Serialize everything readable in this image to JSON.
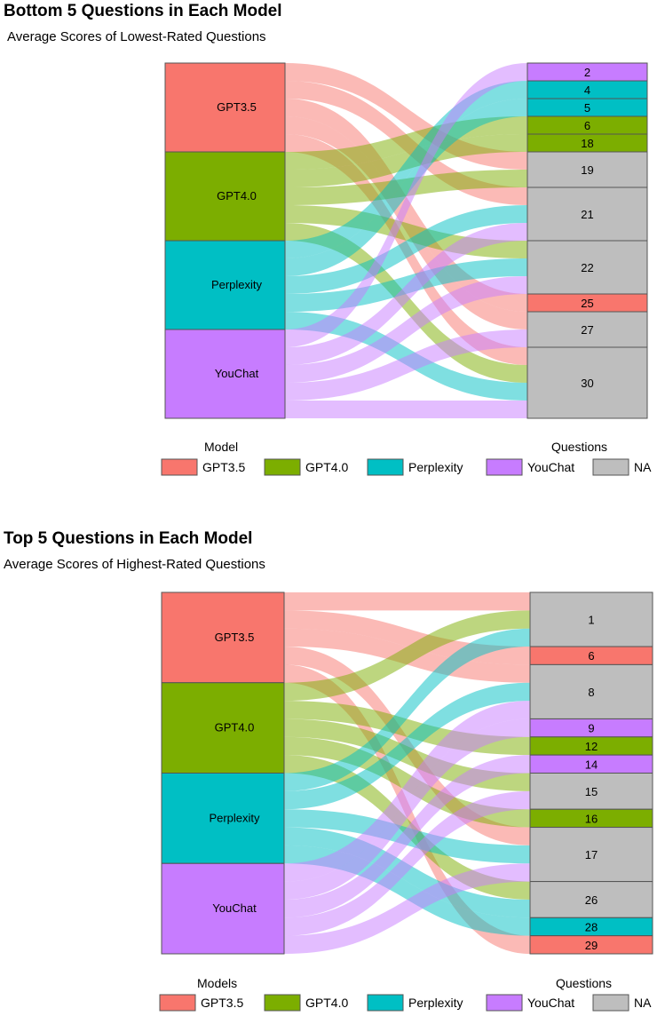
{
  "palette": {
    "GPT3.5": "#F8766D",
    "GPT4.0": "#7CAE00",
    "Perplexity": "#00BFC4",
    "YouChat": "#C77CFF",
    "NA": "#BEBEBE"
  },
  "chart_data": [
    {
      "type": "alluvial",
      "title": "Bottom 5 Questions in Each Model",
      "subtitle": "Average Scores of Lowest-Rated Questions",
      "left_axis_title": "Model",
      "right_axis_title": "Questions",
      "models": [
        "GPT3.5",
        "GPT4.0",
        "Perplexity",
        "YouChat"
      ],
      "questions": [
        {
          "label": "2",
          "owner": "YouChat"
        },
        {
          "label": "4",
          "owner": "Perplexity"
        },
        {
          "label": "5",
          "owner": "Perplexity"
        },
        {
          "label": "6",
          "owner": "GPT4.0"
        },
        {
          "label": "18",
          "owner": "GPT4.0"
        },
        {
          "label": "19",
          "owner": "NA"
        },
        {
          "label": "21",
          "owner": "NA"
        },
        {
          "label": "22",
          "owner": "NA"
        },
        {
          "label": "25",
          "owner": "GPT3.5"
        },
        {
          "label": "27",
          "owner": "NA"
        },
        {
          "label": "30",
          "owner": "NA"
        }
      ],
      "flows": {
        "GPT3.5": [
          "19",
          "21",
          "25",
          "27",
          "30"
        ],
        "GPT4.0": [
          "6",
          "18",
          "19",
          "22",
          "30"
        ],
        "Perplexity": [
          "4",
          "5",
          "21",
          "22",
          "30"
        ],
        "YouChat": [
          "2",
          "21",
          "22",
          "27",
          "30"
        ]
      },
      "legend": [
        {
          "key": "GPT3.5",
          "label": "GPT3.5"
        },
        {
          "key": "GPT4.0",
          "label": "GPT4.0"
        },
        {
          "key": "Perplexity",
          "label": "Perplexity"
        },
        {
          "key": "YouChat",
          "label": "YouChat"
        },
        {
          "key": "NA",
          "label": "NA"
        }
      ]
    },
    {
      "type": "alluvial",
      "title": "Top 5 Questions in Each Model",
      "subtitle": "Average Scores of Highest-Rated Questions",
      "left_axis_title": "Models",
      "right_axis_title": "Questions",
      "models": [
        "GPT3.5",
        "GPT4.0",
        "Perplexity",
        "YouChat"
      ],
      "questions": [
        {
          "label": "1",
          "owner": "NA"
        },
        {
          "label": "6",
          "owner": "GPT3.5"
        },
        {
          "label": "8",
          "owner": "NA"
        },
        {
          "label": "9",
          "owner": "YouChat"
        },
        {
          "label": "12",
          "owner": "GPT4.0"
        },
        {
          "label": "14",
          "owner": "YouChat"
        },
        {
          "label": "15",
          "owner": "NA"
        },
        {
          "label": "16",
          "owner": "GPT4.0"
        },
        {
          "label": "17",
          "owner": "NA"
        },
        {
          "label": "26",
          "owner": "NA"
        },
        {
          "label": "28",
          "owner": "Perplexity"
        },
        {
          "label": "29",
          "owner": "GPT3.5"
        }
      ],
      "flows": {
        "GPT3.5": [
          "1",
          "6",
          "8",
          "17",
          "29"
        ],
        "GPT4.0": [
          "1",
          "12",
          "15",
          "16",
          "26"
        ],
        "Perplexity": [
          "1",
          "8",
          "17",
          "26",
          "28"
        ],
        "YouChat": [
          "8",
          "9",
          "14",
          "15",
          "17"
        ]
      },
      "legend": [
        {
          "key": "GPT3.5",
          "label": "GPT3.5"
        },
        {
          "key": "GPT4.0",
          "label": "GPT4.0"
        },
        {
          "key": "Perplexity",
          "label": "Perplexity"
        },
        {
          "key": "YouChat",
          "label": "YouChat"
        },
        {
          "key": "NA",
          "label": "NA"
        }
      ]
    }
  ]
}
